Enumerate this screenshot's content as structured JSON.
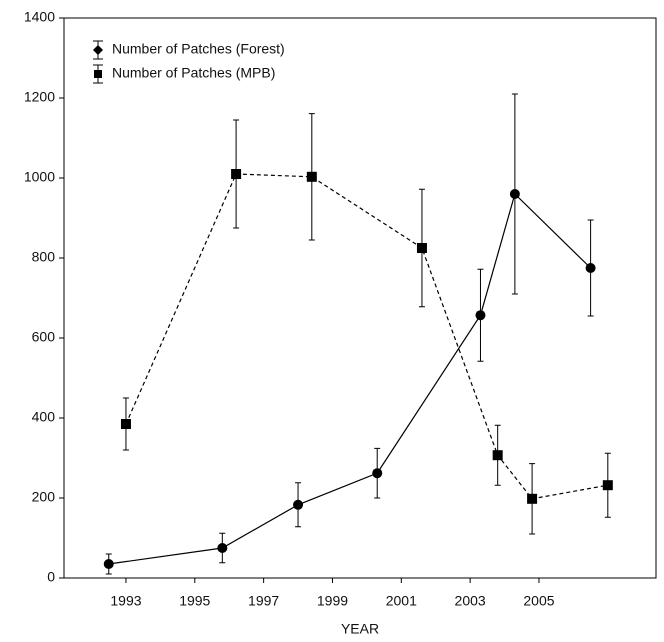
{
  "chart_data": {
    "type": "line",
    "x_label": "YEAR",
    "xlim": [
      1991.2,
      2008.4
    ],
    "xticks": [
      1993,
      1995,
      1997,
      1999,
      2001,
      2003,
      2005
    ],
    "ylim": [
      0,
      1400
    ],
    "yticks": [
      0,
      200,
      400,
      600,
      800,
      1000,
      1200,
      1400
    ],
    "grid": false,
    "legend": "upper-left",
    "series": [
      {
        "name": "Number of Patches (Forest)",
        "color": "#000000",
        "line_style": "solid",
        "marker": "circle",
        "x": [
          1992.5,
          1995.8,
          1998.0,
          2000.3,
          2003.3,
          2004.3,
          2006.5
        ],
        "values": [
          35,
          75,
          183,
          262,
          657,
          960,
          775
        ],
        "errors": [
          25,
          37,
          55,
          62,
          115,
          250,
          120
        ]
      },
      {
        "name": "Number of Patches (MPB)",
        "color": "#000000",
        "line_style": "dashed",
        "marker": "square",
        "x": [
          1993.0,
          1996.2,
          1998.4,
          2001.6,
          2003.8,
          2004.8,
          2007.0
        ],
        "values": [
          385,
          1010,
          1003,
          825,
          307,
          198,
          232
        ],
        "errors": [
          65,
          135,
          158,
          147,
          75,
          88,
          80
        ]
      }
    ]
  }
}
